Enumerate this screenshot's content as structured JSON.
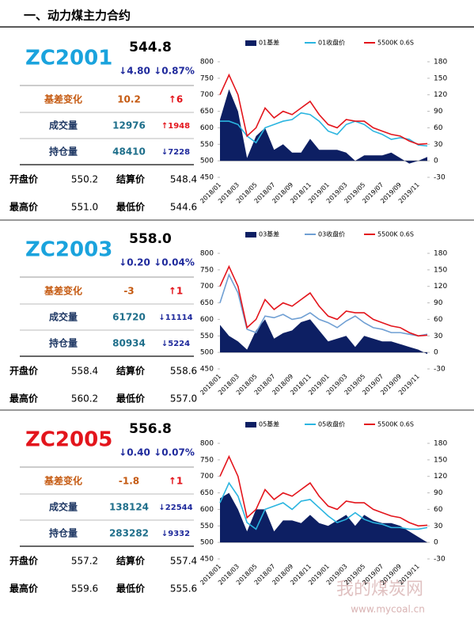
{
  "header": {
    "title": "一、动力煤主力合约"
  },
  "panels": [
    {
      "code": "ZC2001",
      "code_color": "#1aa3dd",
      "price": "544.8",
      "change": "↓4.80",
      "change_pct": "↓0.87%",
      "rows": [
        {
          "label": "基差变化",
          "value": "10.2",
          "change": "↑6"
        },
        {
          "label": "成交量",
          "value": "12976",
          "change": "↑1948"
        },
        {
          "label": "持仓量",
          "value": "48410",
          "change": "↓7228"
        }
      ],
      "prices": [
        [
          "开盘价",
          "550.2",
          "结算价",
          "548.4"
        ],
        [
          "最高价",
          "551.0",
          "最低价",
          "544.6"
        ]
      ],
      "chart": {
        "type": "combo",
        "categories": [
          "2018/01",
          null,
          "2018/03",
          null,
          "2018/05",
          null,
          "2018/07",
          null,
          "2018/09",
          null,
          "2018/11",
          null,
          "2019/01",
          null,
          "2019/03",
          null,
          "2019/05",
          null,
          "2019/07",
          null,
          "2019/09",
          null,
          "2019/11",
          null
        ],
        "series": [
          {
            "name": "01基差",
            "type": "area",
            "axis": "y2",
            "color": "#0d1f63",
            "values": [
              75,
              130,
              90,
              5,
              45,
              60,
              20,
              30,
              15,
              15,
              40,
              20,
              20,
              20,
              15,
              0,
              10,
              10,
              10,
              15,
              5,
              -5,
              0,
              7
            ]
          },
          {
            "name": "01收盘价",
            "type": "line",
            "color": "#2bb5e0",
            "values": [
              620,
              620,
              610,
              575,
              555,
              600,
              610,
              620,
              625,
              645,
              640,
              620,
              590,
              580,
              610,
              620,
              610,
              590,
              580,
              565,
              570,
              565,
              548,
              545
            ]
          },
          {
            "name": "5500K 0.6S",
            "type": "line",
            "color": "#e3151c",
            "values": [
              700,
              760,
              700,
              575,
              600,
              660,
              630,
              650,
              640,
              660,
              680,
              640,
              610,
              600,
              625,
              620,
              620,
              600,
              590,
              580,
              575,
              560,
              550,
              552
            ]
          }
        ],
        "ylim": [
          450,
          800
        ],
        "yticks": [
          450,
          500,
          550,
          600,
          650,
          700,
          750,
          800
        ],
        "y2lim": [
          -30,
          180
        ],
        "y2ticks": [
          -30,
          0,
          30,
          60,
          90,
          120,
          150,
          180
        ]
      }
    },
    {
      "code": "ZC2003",
      "code_color": "#1aa3dd",
      "price": "558.0",
      "change": "↓0.20",
      "change_pct": "↓0.04%",
      "rows": [
        {
          "label": "基差变化",
          "value": "-3",
          "change": "↑1"
        },
        {
          "label": "成交量",
          "value": "61720",
          "change": "↓11114"
        },
        {
          "label": "持仓量",
          "value": "80934",
          "change": "↓5224"
        }
      ],
      "prices": [
        [
          "开盘价",
          "558.4",
          "结算价",
          "558.6"
        ],
        [
          "最高价",
          "560.2",
          "最低价",
          "557.0"
        ]
      ],
      "chart": {
        "type": "combo",
        "categories": [
          "2018/01",
          null,
          "2018/03",
          null,
          "2018/05",
          null,
          "2018/07",
          null,
          "2018/09",
          null,
          "2018/11",
          null,
          "2019/01",
          null,
          "2019/03",
          null,
          "2019/05",
          null,
          "2019/07",
          null,
          "2019/09",
          null,
          "2019/11",
          null
        ],
        "series": [
          {
            "name": "03基差",
            "type": "area",
            "axis": "y2",
            "color": "#0d1f63",
            "values": [
              50,
              30,
              20,
              5,
              40,
              60,
              25,
              35,
              40,
              55,
              60,
              40,
              20,
              25,
              30,
              10,
              30,
              25,
              20,
              20,
              15,
              10,
              5,
              -3
            ]
          },
          {
            "name": "03收盘价",
            "type": "line",
            "color": "#6f9fd3",
            "values": [
              650,
              735,
              680,
              570,
              560,
              610,
              605,
              615,
              600,
              605,
              620,
              600,
              590,
              575,
              595,
              610,
              590,
              575,
              570,
              560,
              560,
              555,
              550,
              555
            ]
          },
          {
            "name": "5500K 0.6S",
            "type": "line",
            "color": "#e3151c",
            "values": [
              700,
              760,
              700,
              575,
              600,
              660,
              630,
              650,
              640,
              660,
              680,
              640,
              610,
              600,
              625,
              620,
              620,
              600,
              590,
              580,
              575,
              560,
              550,
              552
            ]
          }
        ],
        "ylim": [
          450,
          800
        ],
        "yticks": [
          450,
          500,
          550,
          600,
          650,
          700,
          750,
          800
        ],
        "y2lim": [
          -30,
          180
        ],
        "y2ticks": [
          -30,
          0,
          30,
          60,
          90,
          120,
          150,
          180
        ]
      }
    },
    {
      "code": "ZC2005",
      "code_color": "#e3151c",
      "price": "556.8",
      "change": "↓0.40",
      "change_pct": "↓0.07%",
      "rows": [
        {
          "label": "基差变化",
          "value": "-1.8",
          "change": "↑1"
        },
        {
          "label": "成交量",
          "value": "138124",
          "change": "↓22544"
        },
        {
          "label": "持仓量",
          "value": "283282",
          "change": "↓9332"
        }
      ],
      "prices": [
        [
          "开盘价",
          "557.2",
          "结算价",
          "557.4"
        ],
        [
          "最高价",
          "559.6",
          "最低价",
          "555.6"
        ]
      ],
      "chart": {
        "type": "combo",
        "categories": [
          "2018/01",
          null,
          "2018/03",
          null,
          "2018/05",
          null,
          "2018/07",
          null,
          "2018/09",
          null,
          "2018/11",
          null,
          "2019/01",
          null,
          "2019/03",
          null,
          "2019/05",
          null,
          "2019/07",
          null,
          "2019/09",
          null,
          "2019/11",
          null
        ],
        "series": [
          {
            "name": "05基差",
            "type": "area",
            "axis": "y2",
            "color": "#0d1f63",
            "values": [
              80,
              90,
              60,
              20,
              60,
              60,
              20,
              40,
              40,
              35,
              50,
              35,
              30,
              40,
              50,
              30,
              50,
              40,
              35,
              35,
              30,
              20,
              10,
              0
            ]
          },
          {
            "name": "05收盘价",
            "type": "line",
            "color": "#2bb5e0",
            "values": [
              620,
              680,
              640,
              560,
              540,
              600,
              610,
              620,
              600,
              625,
              630,
              605,
              580,
              560,
              570,
              590,
              570,
              560,
              555,
              545,
              545,
              540,
              540,
              545
            ]
          },
          {
            "name": "5500K 0.6S",
            "type": "line",
            "color": "#e3151c",
            "values": [
              700,
              760,
              700,
              575,
              600,
              660,
              630,
              650,
              640,
              660,
              680,
              640,
              610,
              600,
              625,
              620,
              620,
              600,
              590,
              580,
              575,
              560,
              550,
              552
            ]
          }
        ],
        "ylim": [
          450,
          800
        ],
        "yticks": [
          450,
          500,
          550,
          600,
          650,
          700,
          750,
          800
        ],
        "y2lim": [
          -30,
          180
        ],
        "y2ticks": [
          -30,
          0,
          30,
          60,
          90,
          120,
          150,
          180
        ]
      }
    }
  ],
  "watermark": {
    "name": "我的煤炭网",
    "url": "www.mycoal.cn"
  }
}
